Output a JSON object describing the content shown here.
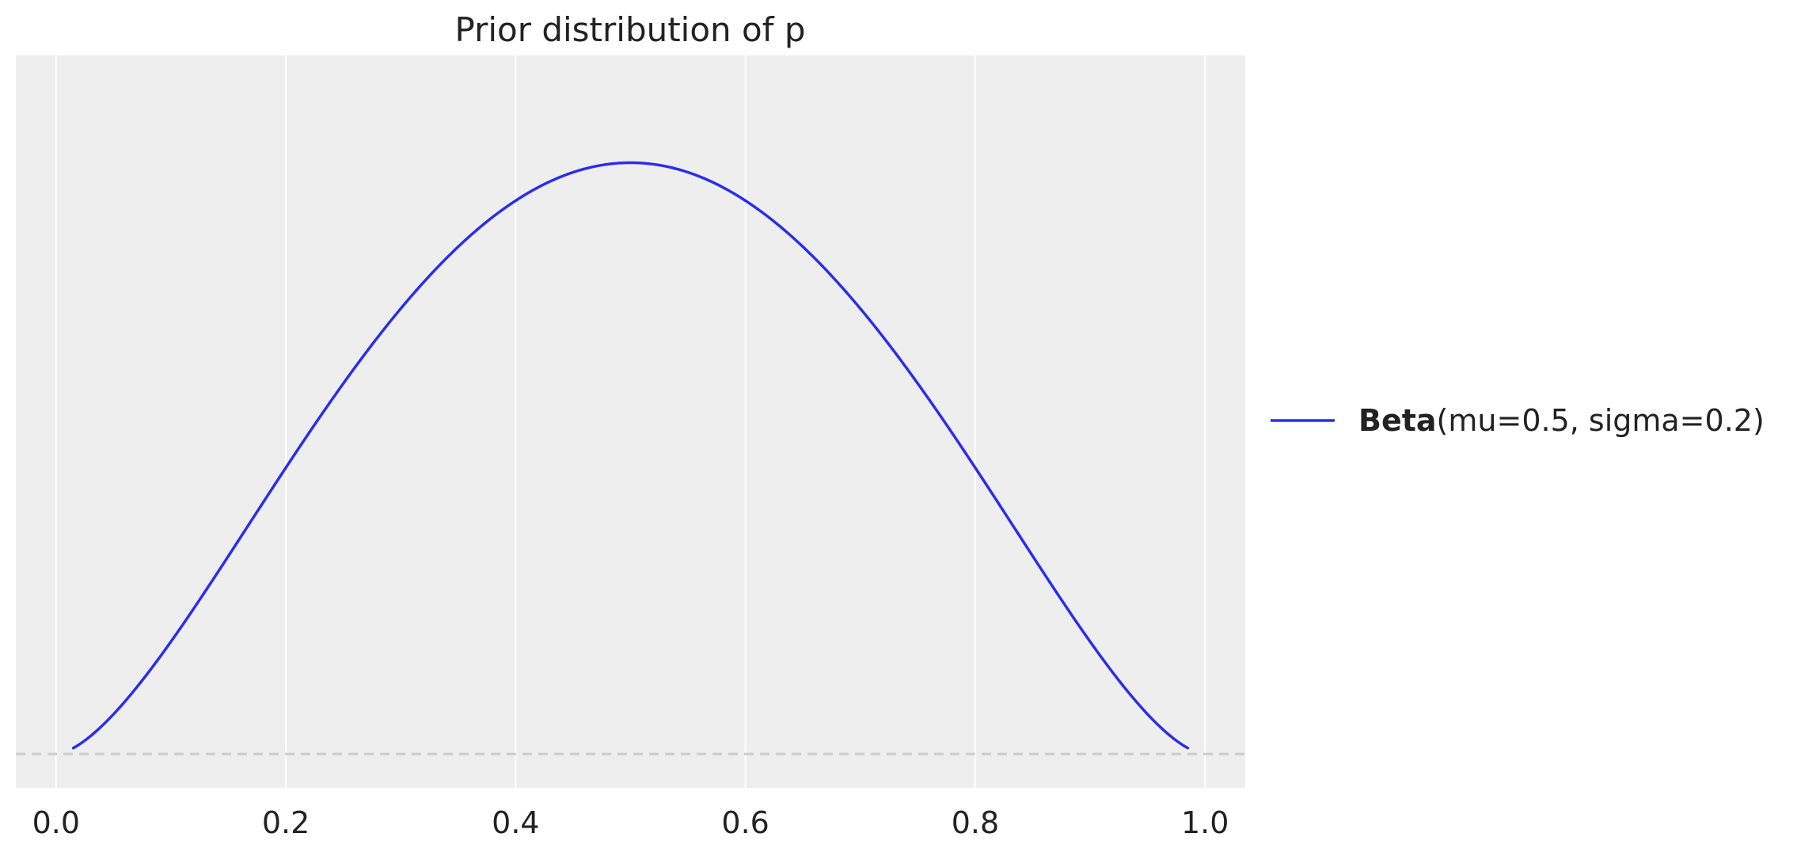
{
  "chart_data": {
    "type": "line",
    "title": "Prior distribution of p",
    "xlabel": "",
    "ylabel": "",
    "xlim": [
      -0.035,
      1.035
    ],
    "ylim": [
      -0.1,
      2.06
    ],
    "x_ticks": [
      "0.0",
      "0.2",
      "0.4",
      "0.6",
      "0.8",
      "1.0"
    ],
    "x_tick_values": [
      0.0,
      0.2,
      0.4,
      0.6,
      0.8,
      1.0
    ],
    "grid": "vertical",
    "legend_placement": "outside-right",
    "baseline": {
      "y": 0,
      "style": "dashed",
      "color": "#cccccc"
    },
    "series": [
      {
        "label_bold": "Beta",
        "label_rest": "(mu=0.5, sigma=0.2)",
        "color": "#2a2eec",
        "distribution": {
          "family": "Beta",
          "alpha": 2.625,
          "beta": 2.625
        },
        "x_range": [
          0.015,
          0.985
        ]
      }
    ]
  },
  "colors": {
    "plot_background": "#eeeeee",
    "grid": "#ffffff"
  }
}
